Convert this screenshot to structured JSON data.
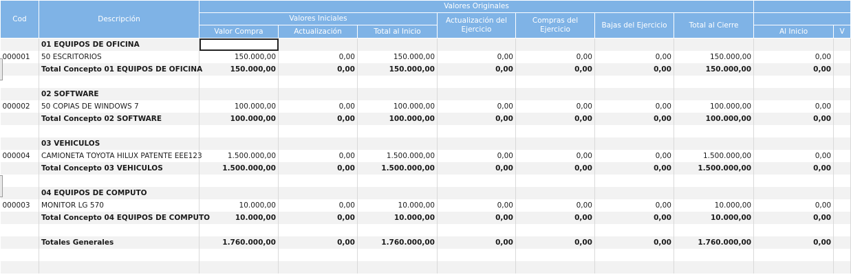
{
  "headers": {
    "cod": "Cod",
    "descripcion": "Descripción",
    "valores_originales": "Valores Originales",
    "valores_iniciales": "Valores Iniciales",
    "valor_compra": "Valor Compra",
    "actualizacion": "Actualización",
    "total_al_inicio": "Total al Inicio",
    "actualizacion_ejercicio": "Actualización del Ejercicio",
    "compras_ejercicio": "Compras del Ejercicio",
    "bajas_ejercicio": "Bajas del Ejercicio",
    "total_al_cierre": "Total al Cierre",
    "al_inicio": "Al Inicio",
    "next_group": "",
    "next_sub": "V"
  },
  "rows": [
    {
      "type": "group",
      "cod": "",
      "desc": "01 EQUIPOS DE OFICINA",
      "c": [
        "",
        "",
        "",
        "",
        "",
        "",
        "",
        ""
      ]
    },
    {
      "type": "item",
      "cod": "000001",
      "desc": "50 ESCRITORIOS",
      "c": [
        "150.000,00",
        "0,00",
        "150.000,00",
        "0,00",
        "0,00",
        "0,00",
        "150.000,00",
        "0,00"
      ]
    },
    {
      "type": "total",
      "cod": "",
      "desc": "Total Concepto 01 EQUIPOS DE OFICINA",
      "c": [
        "150.000,00",
        "0,00",
        "150.000,00",
        "0,00",
        "0,00",
        "0,00",
        "150.000,00",
        "0,00"
      ]
    },
    {
      "type": "blank",
      "cod": "",
      "desc": "",
      "c": [
        "",
        "",
        "",
        "",
        "",
        "",
        "",
        ""
      ]
    },
    {
      "type": "group",
      "cod": "",
      "desc": "02 SOFTWARE",
      "c": [
        "",
        "",
        "",
        "",
        "",
        "",
        "",
        ""
      ]
    },
    {
      "type": "item",
      "cod": "000002",
      "desc": "50 COPIAS DE WINDOWS 7",
      "c": [
        "100.000,00",
        "0,00",
        "100.000,00",
        "0,00",
        "0,00",
        "0,00",
        "100.000,00",
        "0,00"
      ]
    },
    {
      "type": "total",
      "cod": "",
      "desc": "Total Concepto 02 SOFTWARE",
      "c": [
        "100.000,00",
        "0,00",
        "100.000,00",
        "0,00",
        "0,00",
        "0,00",
        "100.000,00",
        "0,00"
      ]
    },
    {
      "type": "blank",
      "cod": "",
      "desc": "",
      "c": [
        "",
        "",
        "",
        "",
        "",
        "",
        "",
        ""
      ]
    },
    {
      "type": "group",
      "cod": "",
      "desc": "03 VEHICULOS",
      "c": [
        "",
        "",
        "",
        "",
        "",
        "",
        "",
        ""
      ]
    },
    {
      "type": "item",
      "cod": "000004",
      "desc": "CAMIONETA TOYOTA HILUX PATENTE EEE123",
      "c": [
        "1.500.000,00",
        "0,00",
        "1.500.000,00",
        "0,00",
        "0,00",
        "0,00",
        "1.500.000,00",
        "0,00"
      ]
    },
    {
      "type": "total",
      "cod": "",
      "desc": "Total Concepto 03 VEHICULOS",
      "c": [
        "1.500.000,00",
        "0,00",
        "1.500.000,00",
        "0,00",
        "0,00",
        "0,00",
        "1.500.000,00",
        "0,00"
      ]
    },
    {
      "type": "blank",
      "cod": "",
      "desc": "",
      "c": [
        "",
        "",
        "",
        "",
        "",
        "",
        "",
        ""
      ]
    },
    {
      "type": "group",
      "cod": "",
      "desc": "04 EQUIPOS DE COMPUTO",
      "c": [
        "",
        "",
        "",
        "",
        "",
        "",
        "",
        ""
      ]
    },
    {
      "type": "item",
      "cod": "000003",
      "desc": "MONITOR LG 570",
      "c": [
        "10.000,00",
        "0,00",
        "10.000,00",
        "0,00",
        "0,00",
        "0,00",
        "10.000,00",
        "0,00"
      ]
    },
    {
      "type": "total",
      "cod": "",
      "desc": "Total Concepto 04 EQUIPOS DE COMPUTO",
      "c": [
        "10.000,00",
        "0,00",
        "10.000,00",
        "0,00",
        "0,00",
        "0,00",
        "10.000,00",
        "0,00"
      ]
    },
    {
      "type": "blank",
      "cod": "",
      "desc": "",
      "c": [
        "",
        "",
        "",
        "",
        "",
        "",
        "",
        ""
      ]
    },
    {
      "type": "grand",
      "cod": "",
      "desc": "Totales Generales",
      "c": [
        "1.760.000,00",
        "0,00",
        "1.760.000,00",
        "0,00",
        "0,00",
        "0,00",
        "1.760.000,00",
        "0,00"
      ]
    },
    {
      "type": "blank",
      "cod": "",
      "desc": "",
      "c": [
        "",
        "",
        "",
        "",
        "",
        "",
        "",
        ""
      ]
    },
    {
      "type": "blank",
      "cod": "",
      "desc": "",
      "c": [
        "",
        "",
        "",
        "",
        "",
        "",
        "",
        ""
      ]
    }
  ]
}
